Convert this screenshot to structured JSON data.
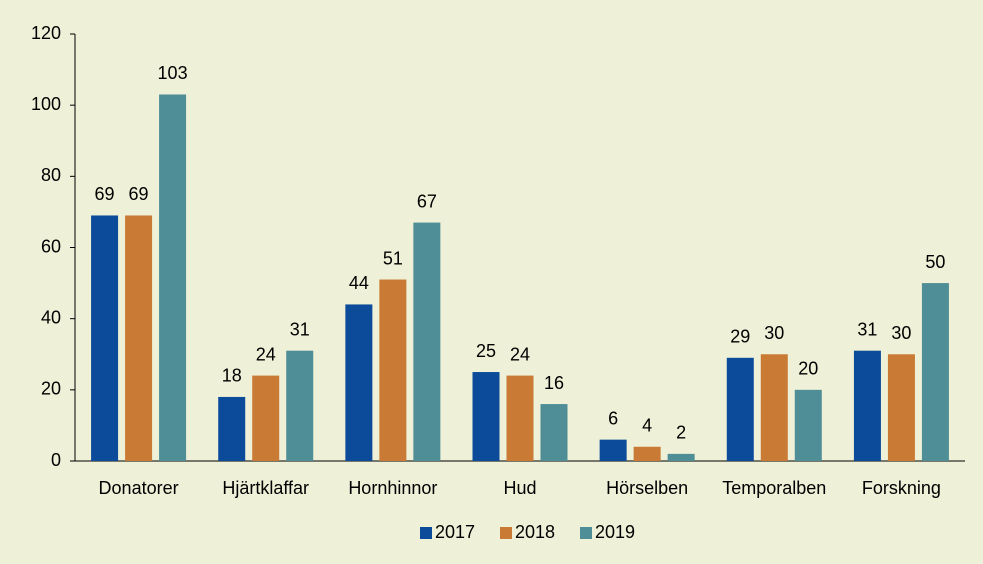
{
  "chart_data": {
    "type": "bar",
    "categories": [
      "Donatorer",
      "Hjärtklaffar",
      "Hornhinnor",
      "Hud",
      "Hörselben",
      "Temporalben",
      "Forskning"
    ],
    "series": [
      {
        "name": "2017",
        "color": "#0b4b9a",
        "values": [
          69,
          18,
          44,
          25,
          6,
          29,
          31
        ]
      },
      {
        "name": "2018",
        "color": "#c97a34",
        "values": [
          69,
          24,
          51,
          24,
          4,
          30,
          30
        ]
      },
      {
        "name": "2019",
        "color": "#4f8e97",
        "values": [
          103,
          31,
          67,
          16,
          2,
          20,
          50
        ]
      }
    ],
    "ylim": [
      0,
      120
    ],
    "yticks": [
      0,
      20,
      40,
      60,
      80,
      100,
      120
    ],
    "grid": false,
    "legend": "bottom"
  }
}
